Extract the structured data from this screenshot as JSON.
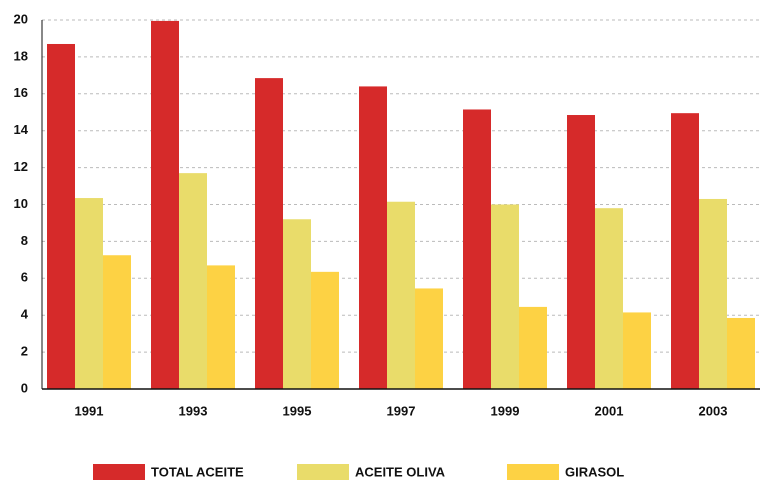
{
  "chart_data": {
    "type": "bar",
    "categories": [
      "1991",
      "1993",
      "1995",
      "1997",
      "1999",
      "2001",
      "2003"
    ],
    "series": [
      {
        "name": "TOTAL ACEITE",
        "color": "#d62a2a",
        "values": [
          18.7,
          19.95,
          16.85,
          16.4,
          15.15,
          14.85,
          14.95
        ]
      },
      {
        "name": "ACEITE OLIVA",
        "color": "#e9dc6a",
        "values": [
          10.35,
          11.7,
          9.2,
          10.15,
          10.0,
          9.8,
          10.3
        ]
      },
      {
        "name": "GIRASOL",
        "color": "#fdd244",
        "values": [
          7.25,
          6.7,
          6.35,
          5.45,
          4.45,
          4.15,
          3.85
        ]
      }
    ],
    "ylim": [
      0,
      20
    ],
    "yticks": [
      0,
      2,
      4,
      6,
      8,
      10,
      12,
      14,
      16,
      18,
      20
    ],
    "grid": true
  }
}
